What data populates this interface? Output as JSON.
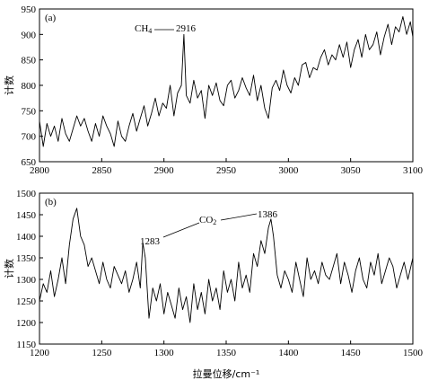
{
  "chart_data": [
    {
      "type": "line",
      "panel_label": "(a)",
      "ylabel": "计数",
      "xlabel": "",
      "xlim": [
        2800,
        3100
      ],
      "ylim": [
        650,
        950
      ],
      "xticks": [
        2800,
        2850,
        2900,
        2950,
        3000,
        3050,
        3100
      ],
      "yticks": [
        650,
        700,
        750,
        800,
        850,
        900,
        950
      ],
      "series": [
        {
          "x": [
            2800,
            2803,
            2806,
            2809,
            2812,
            2815,
            2818,
            2821,
            2824,
            2827,
            2830,
            2833,
            2836,
            2839,
            2842,
            2845,
            2848,
            2851,
            2854,
            2857,
            2860,
            2863,
            2866,
            2869,
            2872,
            2875,
            2878,
            2881,
            2884,
            2887,
            2890,
            2893,
            2896,
            2899,
            2902,
            2905,
            2908,
            2911,
            2914,
            2916,
            2918,
            2921,
            2924,
            2927,
            2930,
            2933,
            2936,
            2939,
            2942,
            2945,
            2948,
            2951,
            2954,
            2957,
            2960,
            2963,
            2966,
            2969,
            2972,
            2975,
            2978,
            2981,
            2984,
            2987,
            2990,
            2993,
            2996,
            2999,
            3002,
            3005,
            3008,
            3011,
            3014,
            3017,
            3020,
            3023,
            3026,
            3029,
            3032,
            3035,
            3038,
            3041,
            3044,
            3047,
            3050,
            3053,
            3056,
            3059,
            3062,
            3065,
            3068,
            3071,
            3074,
            3077,
            3080,
            3083,
            3086,
            3089,
            3092,
            3095,
            3098,
            3100
          ],
          "y": [
            730,
            680,
            725,
            700,
            720,
            690,
            735,
            705,
            690,
            715,
            740,
            720,
            735,
            710,
            690,
            725,
            700,
            740,
            720,
            705,
            680,
            730,
            700,
            690,
            720,
            745,
            710,
            735,
            760,
            720,
            745,
            775,
            740,
            765,
            755,
            800,
            740,
            785,
            800,
            900,
            780,
            765,
            810,
            775,
            790,
            735,
            800,
            780,
            805,
            770,
            760,
            800,
            810,
            775,
            790,
            815,
            795,
            780,
            820,
            770,
            800,
            755,
            735,
            795,
            810,
            790,
            830,
            800,
            785,
            815,
            800,
            840,
            845,
            815,
            835,
            830,
            855,
            870,
            840,
            860,
            850,
            880,
            855,
            885,
            835,
            870,
            890,
            855,
            900,
            870,
            880,
            905,
            860,
            895,
            920,
            880,
            915,
            905,
            935,
            900,
            925,
            895
          ]
        }
      ],
      "annotations": [
        {
          "text_prefix": "CH",
          "text_sub": "4",
          "text_value": "2916",
          "x": 2916,
          "y": 900
        }
      ]
    },
    {
      "type": "line",
      "panel_label": "(b)",
      "ylabel": "计数",
      "xlabel": "拉曼位移/cm⁻¹",
      "xlim": [
        1200,
        1500
      ],
      "ylim": [
        1150,
        1500
      ],
      "xticks": [
        1200,
        1250,
        1300,
        1350,
        1400,
        1450,
        1500
      ],
      "yticks": [
        1150,
        1200,
        1250,
        1300,
        1350,
        1400,
        1450,
        1500
      ],
      "series": [
        {
          "x": [
            1200,
            1203,
            1206,
            1209,
            1212,
            1215,
            1218,
            1221,
            1224,
            1227,
            1230,
            1233,
            1236,
            1239,
            1242,
            1245,
            1248,
            1251,
            1254,
            1257,
            1260,
            1263,
            1266,
            1269,
            1272,
            1275,
            1278,
            1281,
            1283,
            1285,
            1288,
            1291,
            1294,
            1297,
            1300,
            1303,
            1306,
            1309,
            1312,
            1315,
            1318,
            1321,
            1324,
            1327,
            1330,
            1333,
            1336,
            1339,
            1342,
            1345,
            1348,
            1351,
            1354,
            1357,
            1360,
            1363,
            1366,
            1369,
            1372,
            1375,
            1378,
            1381,
            1384,
            1386,
            1388,
            1391,
            1394,
            1397,
            1400,
            1403,
            1406,
            1409,
            1412,
            1415,
            1418,
            1421,
            1424,
            1427,
            1430,
            1433,
            1436,
            1439,
            1442,
            1445,
            1448,
            1451,
            1454,
            1457,
            1460,
            1463,
            1466,
            1469,
            1472,
            1475,
            1478,
            1481,
            1484,
            1487,
            1490,
            1493,
            1496,
            1500
          ],
          "y": [
            1250,
            1290,
            1270,
            1320,
            1260,
            1300,
            1350,
            1290,
            1380,
            1440,
            1465,
            1400,
            1380,
            1330,
            1350,
            1320,
            1290,
            1340,
            1300,
            1280,
            1330,
            1310,
            1290,
            1320,
            1270,
            1300,
            1340,
            1280,
            1385,
            1350,
            1210,
            1280,
            1250,
            1290,
            1220,
            1270,
            1240,
            1210,
            1280,
            1230,
            1260,
            1200,
            1290,
            1230,
            1270,
            1220,
            1300,
            1250,
            1280,
            1230,
            1320,
            1270,
            1300,
            1250,
            1340,
            1280,
            1310,
            1270,
            1360,
            1330,
            1390,
            1360,
            1420,
            1440,
            1400,
            1310,
            1280,
            1320,
            1300,
            1270,
            1340,
            1300,
            1260,
            1350,
            1300,
            1320,
            1290,
            1340,
            1310,
            1300,
            1330,
            1360,
            1290,
            1340,
            1310,
            1270,
            1320,
            1350,
            1300,
            1280,
            1340,
            1310,
            1360,
            1290,
            1320,
            1350,
            1330,
            1280,
            1310,
            1340,
            1300,
            1350
          ]
        }
      ],
      "annotations": [
        {
          "text_value": "1283",
          "x": 1283,
          "y": 1385
        },
        {
          "text_prefix": "CO",
          "text_sub": "2",
          "text_value": "1386",
          "x": 1386,
          "y": 1440
        }
      ]
    }
  ]
}
